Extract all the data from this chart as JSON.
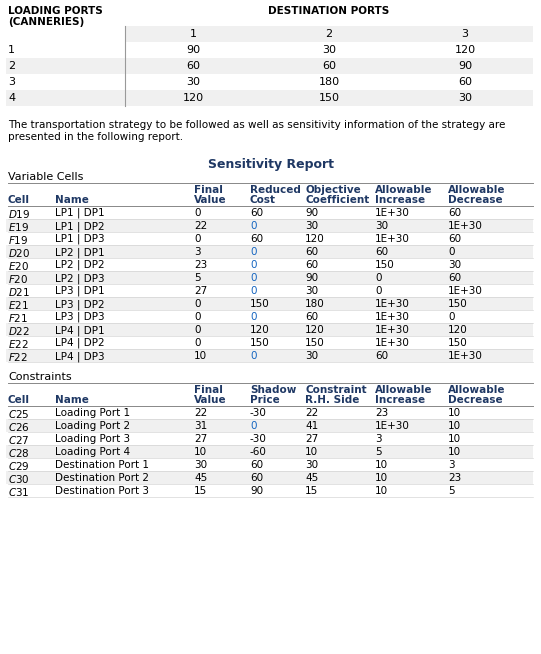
{
  "transport_table": {
    "col_headers": [
      "1",
      "2",
      "3"
    ],
    "row_headers": [
      "1",
      "2",
      "3",
      "4"
    ],
    "values": [
      [
        90,
        30,
        120
      ],
      [
        60,
        60,
        90
      ],
      [
        30,
        180,
        60
      ],
      [
        120,
        150,
        30
      ]
    ]
  },
  "paragraph": "The transportation strategy to be followed as well as sensitivity information of the strategy are\npresented in the following report.",
  "sensitivity_title": "Sensitivity Report",
  "variable_cells_label": "Variable Cells",
  "var_rows": [
    [
      "$D$19",
      "LP1 | DP1",
      "0",
      "60",
      "90",
      "1E+30",
      "60"
    ],
    [
      "$E$19",
      "LP1 | DP2",
      "22",
      "0",
      "30",
      "30",
      "1E+30"
    ],
    [
      "$F$19",
      "LP1 | DP3",
      "0",
      "60",
      "120",
      "1E+30",
      "60"
    ],
    [
      "$D$20",
      "LP2 | DP1",
      "3",
      "0",
      "60",
      "60",
      "0"
    ],
    [
      "$E$20",
      "LP2 | DP2",
      "23",
      "0",
      "60",
      "150",
      "30"
    ],
    [
      "$F$20",
      "LP2 | DP3",
      "5",
      "0",
      "90",
      "0",
      "60"
    ],
    [
      "$D$21",
      "LP3 | DP1",
      "27",
      "0",
      "30",
      "0",
      "1E+30"
    ],
    [
      "$E$21",
      "LP3 | DP2",
      "0",
      "150",
      "180",
      "1E+30",
      "150"
    ],
    [
      "$F$21",
      "LP3 | DP3",
      "0",
      "0",
      "60",
      "1E+30",
      "0"
    ],
    [
      "$D$22",
      "LP4 | DP1",
      "0",
      "120",
      "120",
      "1E+30",
      "120"
    ],
    [
      "$E$22",
      "LP4 | DP2",
      "0",
      "150",
      "150",
      "1E+30",
      "150"
    ],
    [
      "$F$22",
      "LP4 | DP3",
      "10",
      "0",
      "30",
      "60",
      "1E+30"
    ]
  ],
  "constraints_label": "Constraints",
  "con_rows": [
    [
      "$C$25",
      "Loading Port 1",
      "22",
      "-30",
      "22",
      "23",
      "10"
    ],
    [
      "$C$26",
      "Loading Port 2",
      "31",
      "0",
      "41",
      "1E+30",
      "10"
    ],
    [
      "$C$27",
      "Loading Port 3",
      "27",
      "-30",
      "27",
      "3",
      "10"
    ],
    [
      "$C$28",
      "Loading Port 4",
      "10",
      "-60",
      "10",
      "5",
      "10"
    ],
    [
      "$C$29",
      "Destination Port 1",
      "30",
      "60",
      "30",
      "10",
      "3"
    ],
    [
      "$C$30",
      "Destination Port 2",
      "45",
      "60",
      "45",
      "10",
      "23"
    ],
    [
      "$C$31",
      "Destination Port 3",
      "15",
      "90",
      "15",
      "10",
      "5"
    ]
  ],
  "blue": "#1F3864",
  "zero_blue": "#1565C0",
  "light_gray": "#f0f0f0",
  "bg": "#ffffff"
}
